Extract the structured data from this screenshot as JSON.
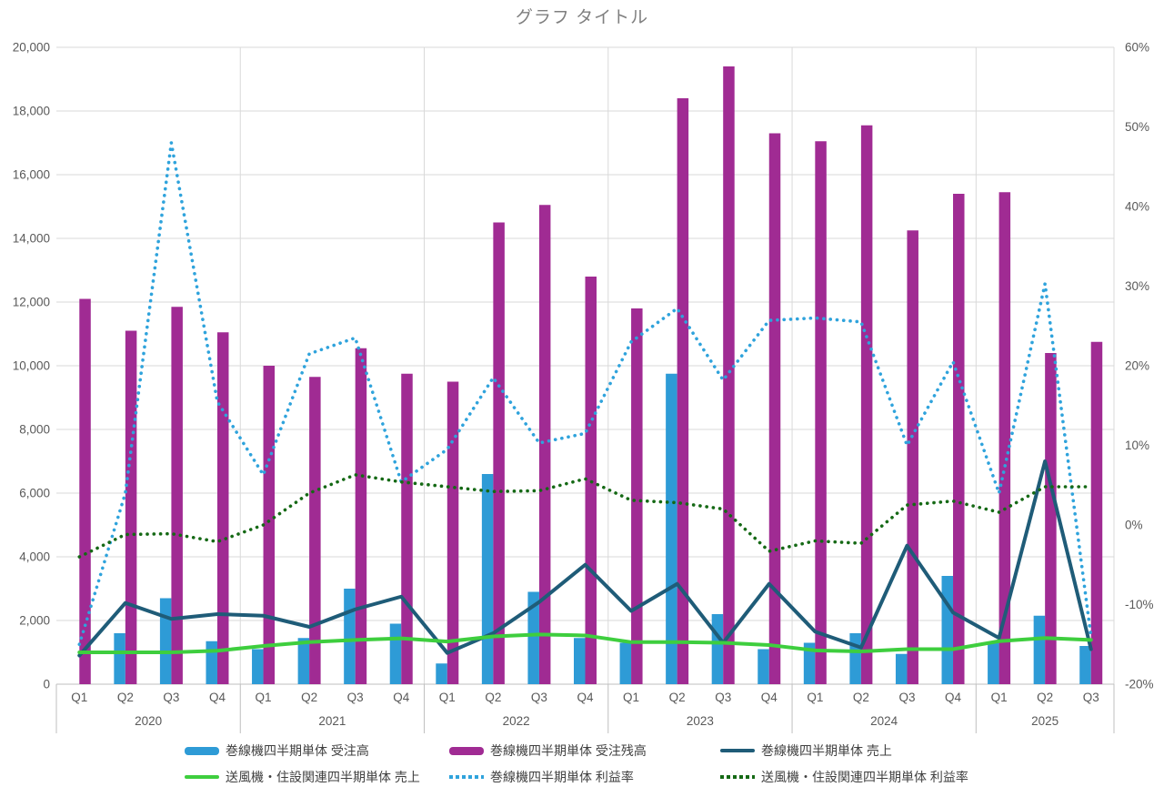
{
  "chart_data": {
    "type": "combo",
    "title": "グラフ タイトル",
    "legend_position": "bottom",
    "grid": true,
    "x_years": [
      {
        "label": "2020",
        "quarters": [
          "Q1",
          "Q2",
          "Q3",
          "Q4"
        ]
      },
      {
        "label": "2021",
        "quarters": [
          "Q1",
          "Q2",
          "Q3",
          "Q4"
        ]
      },
      {
        "label": "2022",
        "quarters": [
          "Q1",
          "Q2",
          "Q3",
          "Q4"
        ]
      },
      {
        "label": "2023",
        "quarters": [
          "Q1",
          "Q2",
          "Q3",
          "Q4"
        ]
      },
      {
        "label": "2024",
        "quarters": [
          "Q1",
          "Q2",
          "Q3",
          "Q4"
        ]
      },
      {
        "label": "2025",
        "quarters": [
          "Q1",
          "Q2",
          "Q3"
        ]
      }
    ],
    "left_axis": {
      "min": 0,
      "max": 20000,
      "step": 2000,
      "ticks": [
        "0",
        "2,000",
        "4,000",
        "6,000",
        "8,000",
        "10,000",
        "12,000",
        "14,000",
        "16,000",
        "18,000",
        "20,000"
      ]
    },
    "right_axis": {
      "min": -20,
      "max": 60,
      "step": 10,
      "ticks": [
        "-20%",
        "-10%",
        "0%",
        "10%",
        "20%",
        "30%",
        "40%",
        "50%",
        "60%"
      ]
    },
    "series": [
      {
        "key": "winder-orders-bar",
        "name": "巻線機四半期単体 受注高",
        "type": "bar",
        "axis": "left",
        "color": "#2e9bd6",
        "values": [
          0,
          1600,
          2700,
          1350,
          1100,
          1450,
          3000,
          1900,
          650,
          6600,
          2900,
          1450,
          1300,
          9750,
          2200,
          1100,
          1300,
          1600,
          950,
          3400,
          1300,
          2150,
          1200
        ]
      },
      {
        "key": "winder-backlog-bar",
        "name": "巻線機四半期単体 受注残高",
        "type": "bar",
        "axis": "left",
        "color": "#a02b93",
        "values": [
          12100,
          11100,
          11850,
          11050,
          10000,
          9650,
          10550,
          9750,
          9500,
          14500,
          15050,
          12800,
          11800,
          18400,
          19400,
          17300,
          17050,
          17550,
          14250,
          15400,
          15450,
          10400,
          10750
        ]
      },
      {
        "key": "winder-sales-line",
        "name": "巻線機四半期単体 売上",
        "type": "line",
        "axis": "left",
        "color": "#1f5c78",
        "values": [
          900,
          2550,
          2050,
          2200,
          2150,
          1800,
          2350,
          2750,
          980,
          1600,
          2580,
          3750,
          2300,
          3150,
          1300,
          3150,
          1650,
          1150,
          4350,
          2250,
          1450,
          7000,
          1100
        ]
      },
      {
        "key": "fan-sales-line",
        "name": "送風機・住設関連四半期単体 売上",
        "type": "line",
        "axis": "left",
        "color": "#3ece3e",
        "values": [
          1000,
          1000,
          1000,
          1050,
          1200,
          1320,
          1390,
          1440,
          1340,
          1500,
          1560,
          1530,
          1320,
          1320,
          1300,
          1230,
          1060,
          1030,
          1100,
          1100,
          1350,
          1450,
          1390
        ]
      },
      {
        "key": "winder-margin-dotted",
        "name": "巻線機四半期単体 利益率",
        "type": "dotted",
        "axis": "right",
        "color": "#2fa3dc",
        "values": [
          -15,
          4,
          48,
          15.5,
          6.3,
          21.5,
          23.5,
          5.4,
          9.5,
          18.5,
          10.3,
          11.5,
          23,
          27.2,
          18.2,
          25.7,
          26,
          25.5,
          10,
          20.5,
          4,
          30.3,
          -14
        ]
      },
      {
        "key": "fan-margin-dotted",
        "name": "送風機・住設関連四半期単体 利益率",
        "type": "dotted",
        "axis": "right",
        "color": "#156915",
        "values": [
          -4,
          -1.2,
          -1.1,
          -2.1,
          0,
          4,
          6.3,
          5.4,
          4.8,
          4.2,
          4.3,
          5.8,
          3.1,
          2.8,
          2,
          -3.3,
          -2,
          -2.3,
          2.5,
          3,
          1.6,
          4.8,
          4.8
        ]
      }
    ],
    "colors": {
      "title": "#7f7f7f",
      "axis_labels": "#595959",
      "gridline": "#d9d9d9",
      "axis_line": "#bfbfbf"
    }
  }
}
